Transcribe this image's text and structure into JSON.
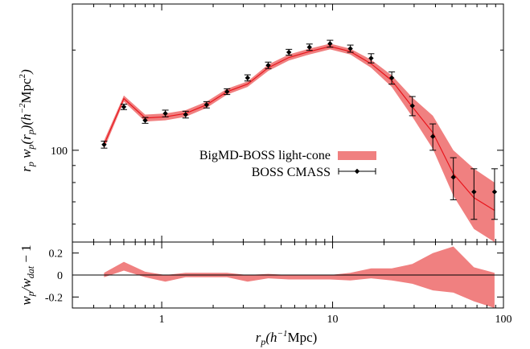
{
  "chart_data": [
    {
      "type": "line",
      "panel": "main",
      "xscale": "log",
      "yscale": "log",
      "xlim": [
        0.3,
        100
      ],
      "ylim": [
        53,
        275
      ],
      "yticks": [
        100
      ],
      "ytick_labels": [
        "100"
      ],
      "ylabel": "r_p w_p(r_p)(h^-2Mpc^2)",
      "legend_position": "center-right",
      "series": [
        {
          "name": "BigMD-BOSS light-cone",
          "kind": "band",
          "color": "#f08080",
          "line_color": "#e8141b",
          "x": [
            0.46,
            0.6,
            0.8,
            1.05,
            1.38,
            1.83,
            2.41,
            3.18,
            4.2,
            5.55,
            7.32,
            9.66,
            12.7,
            16.8,
            22.2,
            29.3,
            38.6,
            50.9,
            67.2,
            88.7
          ],
          "y": [
            104,
            143,
            125,
            126,
            129,
            137,
            150,
            158,
            177,
            190,
            198,
            205,
            198,
            182,
            162,
            135,
            113,
            85,
            72,
            66
          ],
          "y_low": [
            101,
            140,
            122,
            123,
            126,
            134,
            147,
            155,
            173,
            186,
            194,
            201,
            194,
            177,
            155,
            126,
            101,
            73,
            58,
            53
          ],
          "y_high": [
            107,
            146,
            128,
            129,
            132,
            140,
            153,
            161,
            181,
            194,
            202,
            209,
            202,
            187,
            168,
            144,
            127,
            100,
            88,
            80
          ]
        },
        {
          "name": "BOSS CMASS",
          "kind": "points_with_errors",
          "color": "#000000",
          "x": [
            0.46,
            0.6,
            0.8,
            1.05,
            1.38,
            1.83,
            2.41,
            3.18,
            4.2,
            5.55,
            7.32,
            9.66,
            12.7,
            16.8,
            22.2,
            29.3,
            38.6,
            50.9,
            67.2,
            88.7
          ],
          "y": [
            104,
            135,
            123,
            129,
            128,
            137,
            150,
            165,
            180,
            197,
            204,
            209,
            202,
            189,
            165,
            136,
            110,
            83,
            75,
            75
          ],
          "yerr": [
            2.5,
            2.5,
            2.5,
            3,
            3,
            3,
            3,
            3.5,
            4,
            4,
            4.5,
            5,
            5,
            6,
            7,
            9,
            10,
            12,
            13,
            13
          ]
        }
      ]
    },
    {
      "type": "area",
      "panel": "residual",
      "xscale": "log",
      "xlim": [
        0.3,
        100
      ],
      "ylim": [
        -0.3,
        0.3
      ],
      "xticks": [
        1,
        10,
        100
      ],
      "xtick_labels": [
        "1",
        "10",
        "100"
      ],
      "yticks": [
        0.2,
        0,
        -0.2
      ],
      "ytick_labels": [
        "0.2",
        "0",
        "-0.2"
      ],
      "xlabel": "r_p(h^-1Mpc)",
      "ylabel": "w_p/w_dat - 1",
      "zero_line": true,
      "series": [
        {
          "kind": "band",
          "color": "#f08080",
          "x": [
            0.46,
            0.6,
            0.8,
            1.05,
            1.38,
            1.83,
            2.41,
            3.18,
            4.2,
            5.55,
            7.32,
            9.66,
            12.7,
            16.8,
            22.2,
            29.3,
            38.6,
            50.9,
            67.2,
            88.7
          ],
          "y_low": [
            -0.02,
            0.04,
            -0.02,
            -0.06,
            -0.02,
            -0.02,
            -0.02,
            -0.06,
            -0.03,
            -0.04,
            -0.04,
            -0.04,
            -0.05,
            -0.03,
            -0.05,
            -0.08,
            -0.14,
            -0.16,
            -0.24,
            -0.3
          ],
          "y_high": [
            0.02,
            0.12,
            0.03,
            0.0,
            0.02,
            0.02,
            0.02,
            0.0,
            0.01,
            0.0,
            0.0,
            0.0,
            0.02,
            0.06,
            0.06,
            0.1,
            0.2,
            0.26,
            0.07,
            0.02
          ]
        }
      ]
    }
  ]
}
